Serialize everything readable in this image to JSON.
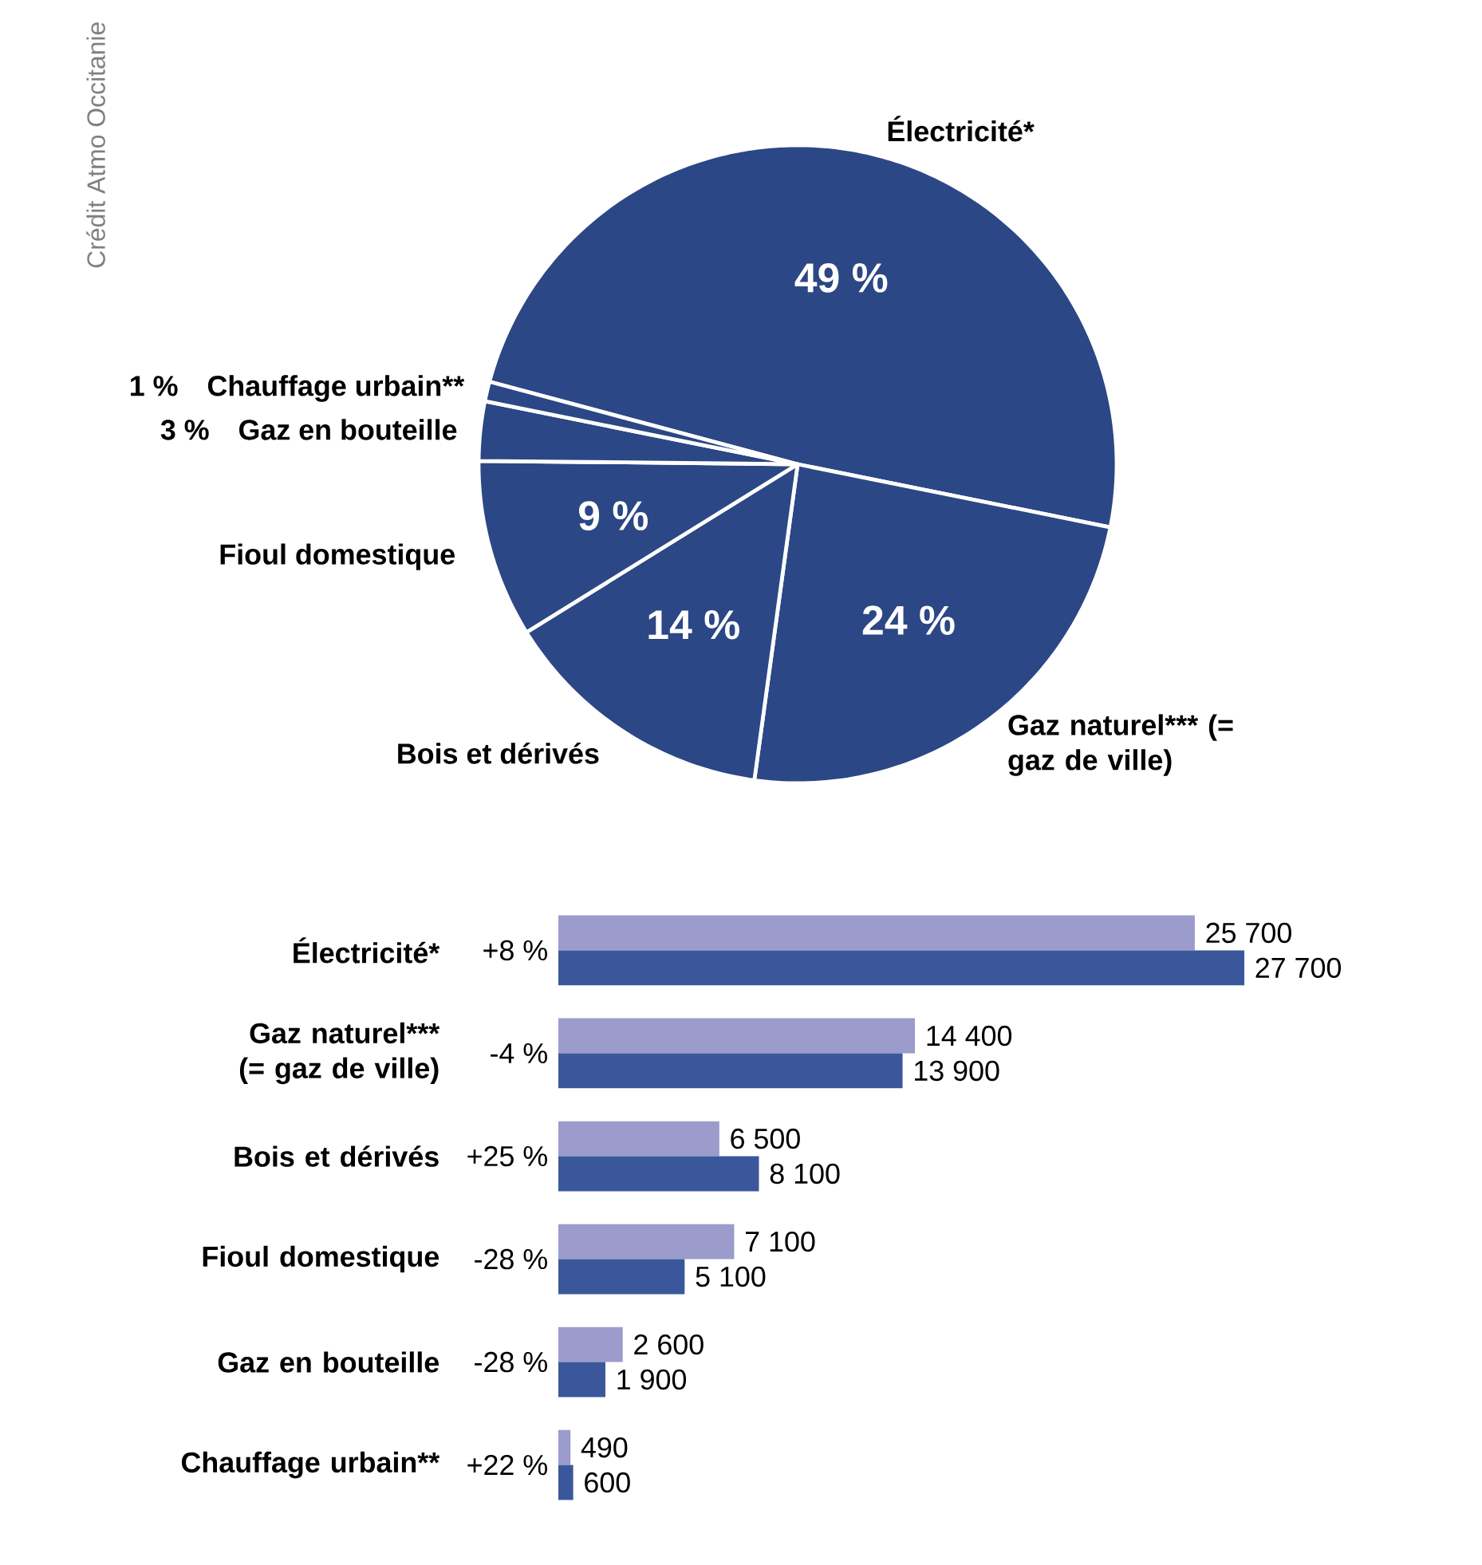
{
  "chart_data": [
    {
      "type": "pie",
      "categories": [
        "Électricité*",
        "Gaz naturel*** (= gaz de ville)",
        "Bois et dérivés",
        "Fioul domestique",
        "Gaz en bouteille",
        "Chauffage urbain**"
      ],
      "values": [
        49,
        24,
        14,
        9,
        3,
        1
      ],
      "value_labels": [
        "49 %",
        "24 %",
        "14 %",
        "9 %",
        "3 %",
        "1 %"
      ],
      "colors": [
        "#2c4785",
        "#2c4785",
        "#2c4785",
        "#2c4785",
        "#2c4785",
        "#2c4785"
      ],
      "annotations": [
        "Crédit Atmo Occitanie"
      ]
    },
    {
      "type": "bar",
      "orientation": "horizontal",
      "categories": [
        "Électricité*",
        "Gaz naturel*** (= gaz de ville)",
        "Bois et dérivés",
        "Fioul domestique",
        "Gaz en bouteille",
        "Chauffage urbain**"
      ],
      "series": [
        {
          "color": "#9b9bcc",
          "values": [
            25700,
            14400,
            6500,
            7100,
            2600,
            490
          ],
          "value_labels": [
            "25 700",
            "14 400",
            "6 500",
            "7 100",
            "2 600",
            "490"
          ]
        },
        {
          "color": "#3b579c",
          "values": [
            27700,
            13900,
            8100,
            5100,
            1900,
            600
          ],
          "value_labels": [
            "27 700",
            "13 900",
            "8 100",
            "5 100",
            "1 900",
            "600"
          ]
        }
      ],
      "annotations": [
        "+8 %",
        "-4 %",
        "+25 %",
        "-28 %",
        "-28 %",
        "+22 %"
      ]
    }
  ]
}
